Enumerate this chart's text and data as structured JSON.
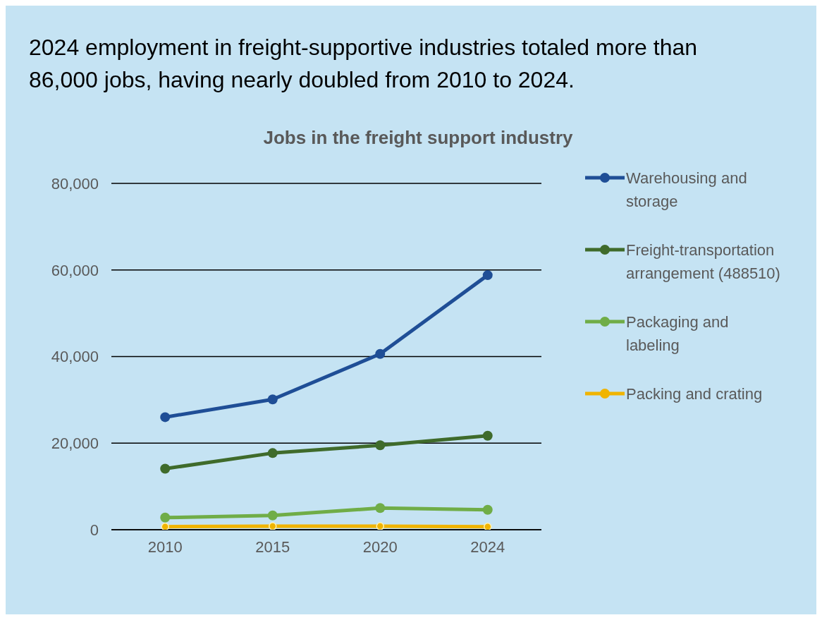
{
  "chart_data": {
    "type": "line",
    "title": "2024 employment in freight-supportive industries totaled more than 86,000 jobs, having nearly doubled from 2010 to 2024.",
    "subtitle": "Jobs in the freight support industry",
    "categories": [
      "2010",
      "2015",
      "2020",
      "2024"
    ],
    "series": [
      {
        "name": "Warehousing and storage",
        "color": "#1f4e96",
        "values": [
          26000,
          30100,
          40600,
          58800
        ]
      },
      {
        "name": "Freight-transportation arrangement (488510)",
        "color": "#3f6b2b",
        "values": [
          14100,
          17700,
          19500,
          21700
        ]
      },
      {
        "name": "Packaging and labeling",
        "color": "#70ad47",
        "values": [
          2800,
          3300,
          5000,
          4600
        ]
      },
      {
        "name": "Packing and crating",
        "color": "#f0b400",
        "values": [
          700,
          800,
          800,
          700
        ]
      }
    ],
    "ylim": [
      0,
      80000
    ],
    "yticks": [
      0,
      {
        "value": 20000,
        "label": "20,000"
      },
      {
        "value": 40000,
        "label": "40,000"
      },
      {
        "value": 60000,
        "label": "60,000"
      },
      {
        "value": 80000,
        "label": "80,000"
      }
    ],
    "grid": "y",
    "legend": "right",
    "marker": "circle",
    "line_style": "solid"
  }
}
